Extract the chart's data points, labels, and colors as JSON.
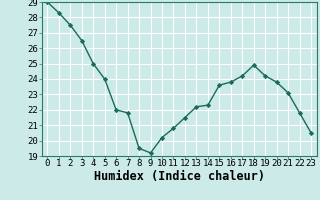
{
  "x": [
    0,
    1,
    2,
    3,
    4,
    5,
    6,
    7,
    8,
    9,
    10,
    11,
    12,
    13,
    14,
    15,
    16,
    17,
    18,
    19,
    20,
    21,
    22,
    23
  ],
  "y": [
    29,
    28.3,
    27.5,
    26.5,
    25,
    24,
    22,
    21.8,
    19.5,
    19.2,
    20.2,
    20.8,
    21.5,
    22.2,
    22.3,
    23.6,
    23.8,
    24.2,
    24.9,
    24.2,
    23.8,
    23.1,
    21.8,
    20.5
  ],
  "line_color": "#1a6b5a",
  "marker": "D",
  "marker_size": 2.2,
  "bg_color": "#cceae7",
  "grid_color": "#ffffff",
  "xlabel": "Humidex (Indice chaleur)",
  "xlim": [
    -0.5,
    23.5
  ],
  "ylim": [
    19,
    29
  ],
  "yticks": [
    19,
    20,
    21,
    22,
    23,
    24,
    25,
    26,
    27,
    28,
    29
  ],
  "xticks": [
    0,
    1,
    2,
    3,
    4,
    5,
    6,
    7,
    8,
    9,
    10,
    11,
    12,
    13,
    14,
    15,
    16,
    17,
    18,
    19,
    20,
    21,
    22,
    23
  ],
  "tick_fontsize": 6.5,
  "xlabel_fontsize": 8.5,
  "linewidth": 1.0
}
